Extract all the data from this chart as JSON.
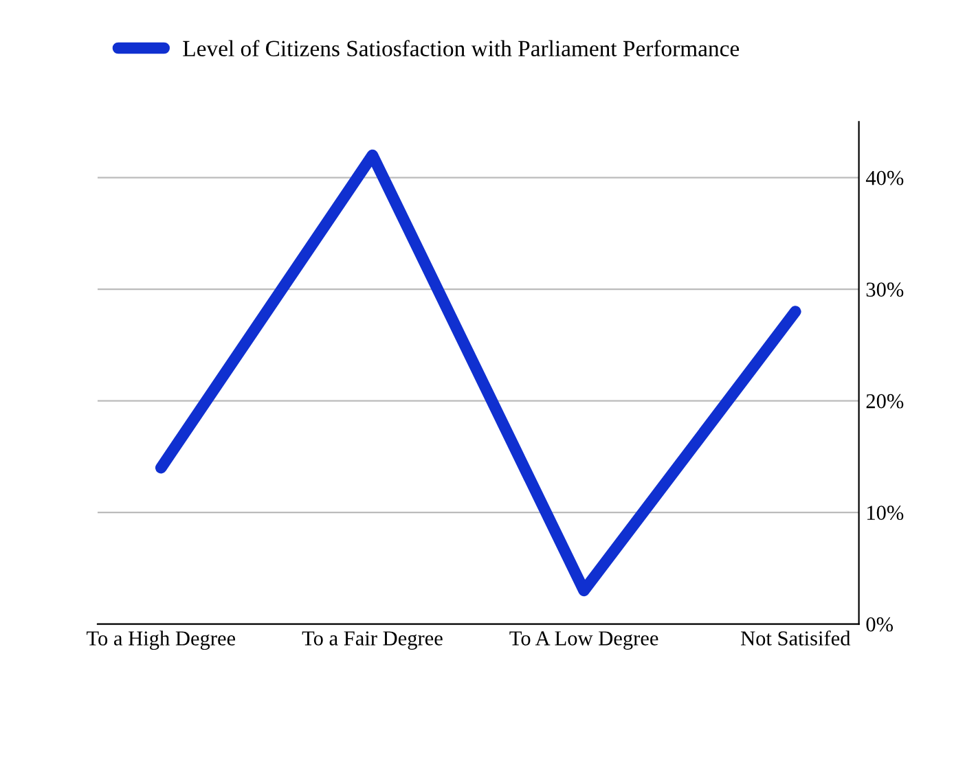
{
  "chart_data": {
    "type": "line",
    "categories": [
      "To a High Degree",
      "To a Fair Degree",
      "To A Low Degree",
      "Not Satisifed"
    ],
    "series": [
      {
        "name": "Level of Citizens Satiosfaction with Parliament Performance",
        "color": "#1030d0",
        "values": [
          14,
          42,
          3,
          28
        ]
      }
    ],
    "ylim": [
      0,
      45
    ],
    "yticks": [
      {
        "value": 0,
        "label": "0%"
      },
      {
        "value": 10,
        "label": "10%"
      },
      {
        "value": 20,
        "label": "20%"
      },
      {
        "value": 30,
        "label": "30%"
      },
      {
        "value": 40,
        "label": "40%"
      }
    ],
    "grid": "y",
    "legend": "top left",
    "marker": "none",
    "line_style": "solid"
  }
}
